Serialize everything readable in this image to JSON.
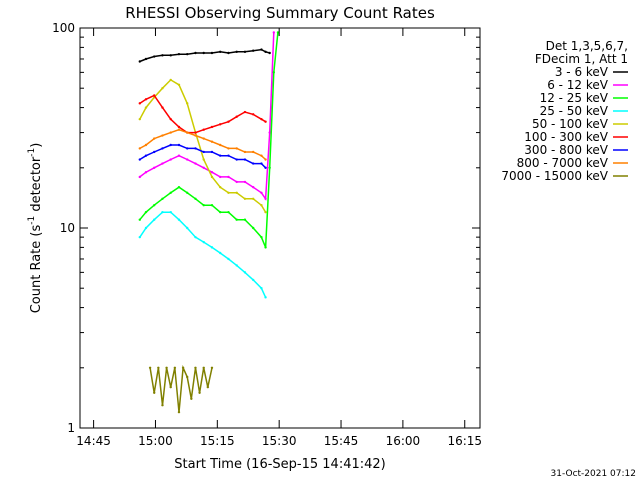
{
  "chart_data": {
    "type": "line",
    "title": "RHESSI Observing Summary Count Rates",
    "xlabel": "Start Time (16-Sep-15 14:41:42)",
    "ylabel_main": "Count Rate (s",
    "ylabel_sup1": "-1",
    "ylabel_mid": " detector",
    "ylabel_sup2": "-1",
    "ylabel_end": ")",
    "x_unit": "minutes after 14:41:42 UT",
    "xlim": [
      0,
      97
    ],
    "ylim": [
      1,
      100
    ],
    "y_log": true,
    "x_ticks": [
      {
        "label": "14:45",
        "value": 3.3
      },
      {
        "label": "15:00",
        "value": 18.3
      },
      {
        "label": "15:15",
        "value": 33.3
      },
      {
        "label": "15:30",
        "value": 48.3
      },
      {
        "label": "15:45",
        "value": 63.3
      },
      {
        "label": "16:00",
        "value": 78.3
      },
      {
        "label": "16:15",
        "value": 93.3
      }
    ],
    "y_ticks": [
      {
        "label": "1",
        "value": 1
      },
      {
        "label": "10",
        "value": 10
      },
      {
        "label": "100",
        "value": 100
      }
    ],
    "legend_header": [
      "Det 1,3,5,6,7,",
      "FDecim 1, Att 1"
    ],
    "legend_position": "right",
    "series": [
      {
        "name": "3 - 6 keV",
        "color": "#000000",
        "x": [
          14.5,
          16,
          18,
          20,
          22,
          24,
          26,
          28,
          30,
          32,
          34,
          36,
          38,
          40,
          42,
          44,
          45,
          46
        ],
        "y": [
          68,
          70,
          72,
          73,
          73,
          74,
          74,
          75,
          75,
          75,
          76,
          75,
          76,
          76,
          77,
          78,
          76,
          75
        ]
      },
      {
        "name": "6 - 12 keV",
        "color": "#ff00ff",
        "x": [
          14.5,
          16,
          18,
          20,
          22,
          24,
          26,
          28,
          30,
          32,
          34,
          36,
          38,
          40,
          42,
          44,
          45,
          46,
          47
        ],
        "y": [
          18,
          19,
          20,
          21,
          22,
          23,
          22,
          21,
          20,
          19,
          18,
          18,
          17,
          17,
          16,
          15,
          14,
          30,
          95
        ]
      },
      {
        "name": "12 - 25 keV",
        "color": "#00ff00",
        "x": [
          14.5,
          16,
          18,
          20,
          22,
          24,
          26,
          28,
          30,
          32,
          34,
          36,
          38,
          40,
          42,
          44,
          45,
          46,
          47,
          48
        ],
        "y": [
          11,
          12,
          13,
          14,
          15,
          16,
          15,
          14,
          13,
          13,
          12,
          12,
          11,
          11,
          10,
          9,
          8,
          20,
          60,
          95
        ]
      },
      {
        "name": "25 - 50 keV",
        "color": "#00ffff",
        "x": [
          14.5,
          16,
          18,
          20,
          22,
          24,
          26,
          28,
          30,
          32,
          34,
          36,
          38,
          40,
          42,
          44,
          45
        ],
        "y": [
          9,
          10,
          11,
          12,
          12,
          11,
          10,
          9,
          8.5,
          8,
          7.5,
          7,
          6.5,
          6,
          5.5,
          5,
          4.5
        ]
      },
      {
        "name": "50 - 100 keV",
        "color": "#cccc00",
        "x": [
          14.5,
          16,
          18,
          20,
          22,
          24,
          26,
          28,
          30,
          32,
          34,
          36,
          38,
          40,
          42,
          44,
          45
        ],
        "y": [
          35,
          40,
          45,
          50,
          55,
          52,
          42,
          30,
          22,
          18,
          16,
          15,
          15,
          14,
          14,
          13,
          12
        ]
      },
      {
        "name": "100 - 300 keV",
        "color": "#ff0000",
        "x": [
          14.5,
          16,
          18,
          20,
          22,
          24,
          26,
          28,
          30,
          32,
          34,
          36,
          38,
          40,
          42,
          44,
          45
        ],
        "y": [
          42,
          44,
          46,
          40,
          35,
          32,
          30,
          30,
          31,
          32,
          33,
          34,
          36,
          38,
          37,
          35,
          34
        ]
      },
      {
        "name": "300 - 800 keV",
        "color": "#0000ff",
        "x": [
          14.5,
          16,
          18,
          20,
          22,
          24,
          26,
          28,
          30,
          32,
          34,
          36,
          38,
          40,
          42,
          44,
          45
        ],
        "y": [
          22,
          23,
          24,
          25,
          26,
          26,
          25,
          25,
          24,
          24,
          23,
          23,
          22,
          22,
          21,
          21,
          20
        ]
      },
      {
        "name": "800 - 7000 keV",
        "color": "#ff8000",
        "x": [
          14.5,
          16,
          18,
          20,
          22,
          24,
          26,
          28,
          30,
          32,
          34,
          36,
          38,
          40,
          42,
          44,
          45
        ],
        "y": [
          25,
          26,
          28,
          29,
          30,
          31,
          30,
          29,
          28,
          27,
          26,
          25,
          25,
          24,
          24,
          23,
          22
        ]
      },
      {
        "name": "7000 - 15000 keV",
        "color": "#808000",
        "x": [
          17,
          18,
          19,
          20,
          21,
          22,
          23,
          24,
          25,
          26,
          27,
          28,
          29,
          30,
          31,
          32
        ],
        "y": [
          2,
          1.5,
          2,
          1.3,
          2,
          1.6,
          2,
          1.2,
          2,
          1.8,
          1.4,
          2,
          1.5,
          2,
          1.6,
          2
        ]
      }
    ]
  },
  "footer": {
    "date": "31-Oct-2021 07:12"
  }
}
